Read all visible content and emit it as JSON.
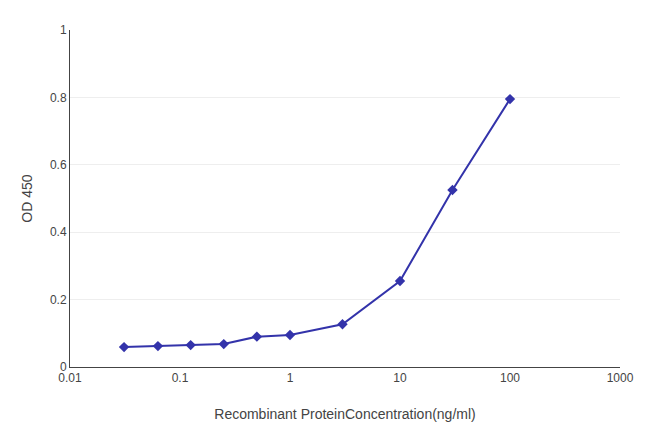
{
  "chart_data": {
    "type": "line",
    "x": [
      0.031,
      0.063,
      0.125,
      0.25,
      0.5,
      1.0,
      3.0,
      10.0,
      30.0,
      100.0
    ],
    "values": [
      0.059,
      0.062,
      0.065,
      0.068,
      0.09,
      0.095,
      0.127,
      0.255,
      0.525,
      0.795
    ],
    "color": "#3333aa",
    "marker": "diamond",
    "log": "x",
    "xlim": [
      0.01,
      1000
    ],
    "ylim": [
      0,
      1.0
    ],
    "xticks": [
      0.01,
      0.1,
      1,
      10,
      100,
      1000
    ],
    "yticks": [
      0,
      0.2,
      0.4,
      0.6,
      0.8,
      1
    ],
    "xlabel": "Recombinant ProteinConcentration(ng/ml)",
    "ylabel": "OD 450",
    "grid": "y"
  }
}
